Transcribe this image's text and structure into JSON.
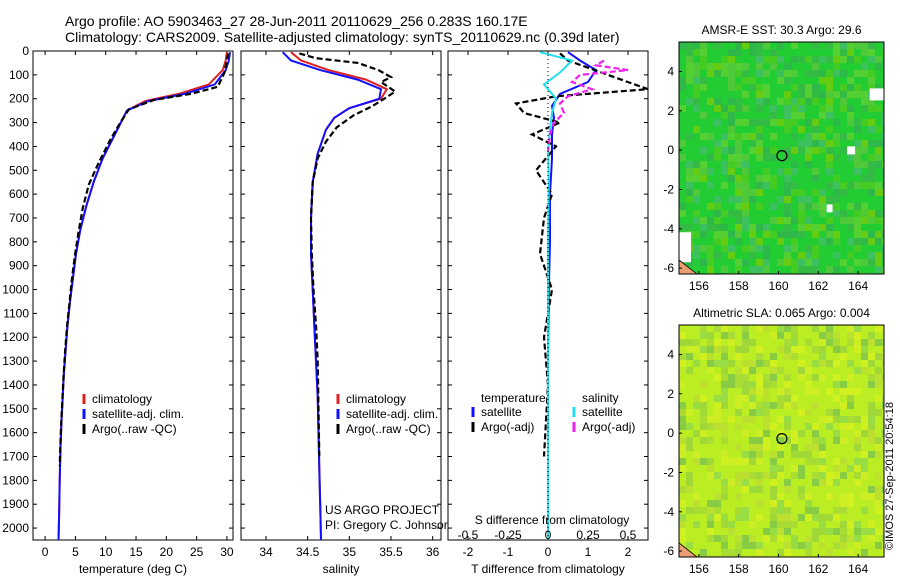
{
  "header": {
    "line1": "Argo profile: AO 5903463_27 28-Jun-2011 20110629_256 0.283S 160.17E",
    "line2": "Climatology: CARS2009. Satellite-adjusted climatology: synTS_20110629.nc (0.39d later)"
  },
  "colors": {
    "climatology": "#e02020",
    "satellite": "#1010ff",
    "argo": "#000000",
    "salinity_satellite": "#20e0f0",
    "salinity_argo": "#f020f0",
    "sst_map": "#22cc33",
    "sla_map": "#bbee22"
  },
  "chart_data": [
    {
      "type": "line",
      "panel": "temperature",
      "xlabel": "temperature (deg C)",
      "xlim": [
        -2,
        31
      ],
      "ylim": [
        0,
        2050
      ],
      "x_ticks": [
        0,
        5,
        10,
        15,
        20,
        25,
        30
      ],
      "y_ticks": [
        0,
        100,
        200,
        300,
        400,
        500,
        600,
        700,
        800,
        900,
        1000,
        1100,
        1200,
        1300,
        1400,
        1500,
        1600,
        1700,
        1800,
        1900,
        2000
      ],
      "legend": [
        "climatology",
        "satellite-adj. clim.",
        "Argo(..raw -QC)"
      ],
      "series": [
        {
          "name": "climatology",
          "color_key": "climatology",
          "x": [
            30,
            29.8,
            29.3,
            27,
            22,
            16.5,
            13.5,
            12.5,
            11.5,
            9.5,
            8.0,
            6.8,
            5.8,
            5.1,
            4.6,
            4.1,
            3.7,
            3.4,
            3.1,
            2.9,
            2.7,
            2.55,
            2.4,
            2.3,
            2.2
          ],
          "y": [
            5,
            40,
            80,
            140,
            180,
            210,
            250,
            300,
            350,
            450,
            550,
            650,
            750,
            850,
            950,
            1050,
            1150,
            1250,
            1350,
            1450,
            1550,
            1650,
            1800,
            1950,
            2050
          ]
        },
        {
          "name": "satellite-adj. clim.",
          "color_key": "satellite",
          "x": [
            30.5,
            30.3,
            29.8,
            28,
            23,
            17,
            13.5,
            12.5,
            11.5,
            9.5,
            8.0,
            6.8,
            5.8,
            5.1,
            4.6,
            4.1,
            3.7,
            3.4,
            3.1,
            2.9,
            2.7,
            2.55,
            2.4,
            2.3,
            2.2
          ],
          "y": [
            5,
            40,
            80,
            140,
            180,
            210,
            250,
            300,
            350,
            450,
            550,
            650,
            750,
            850,
            950,
            1050,
            1150,
            1250,
            1350,
            1450,
            1550,
            1650,
            1800,
            1950,
            2050
          ]
        },
        {
          "name": "Argo(..raw -QC)",
          "color_key": "argo",
          "dashed": true,
          "x": [
            30.2,
            30.0,
            29.6,
            28.5,
            24,
            18,
            13.8,
            12.4,
            10.8,
            8.8,
            7.2,
            6.2,
            5.5,
            4.9,
            4.4,
            4.0,
            3.6,
            3.3,
            3.05,
            2.85,
            2.65,
            2.5,
            2.4
          ],
          "y": [
            10,
            40,
            90,
            150,
            180,
            205,
            245,
            300,
            370,
            470,
            560,
            660,
            760,
            860,
            960,
            1060,
            1160,
            1260,
            1360,
            1460,
            1560,
            1660,
            1740
          ]
        }
      ]
    },
    {
      "type": "line",
      "panel": "salinity",
      "xlabel": "salinity",
      "xlim": [
        33.7,
        36.1
      ],
      "ylim": [
        0,
        2050
      ],
      "x_ticks": [
        34,
        34.5,
        35,
        35.5,
        36
      ],
      "x_tick_labels": [
        "34",
        "34.5",
        "35",
        "35.5",
        "36"
      ],
      "legend": [
        "climatology",
        "satellite-adj. clim.",
        "Argo(..raw -QC)"
      ],
      "annotation": [
        "US ARGO PROJECT",
        "PI: Gregory C. Johnson"
      ],
      "series": [
        {
          "name": "climatology",
          "color_key": "climatology",
          "x": [
            34.3,
            34.42,
            34.75,
            35.2,
            35.45,
            35.38,
            35.0,
            34.82,
            34.72,
            34.62,
            34.56,
            34.54,
            34.54,
            34.56,
            34.58,
            34.6,
            34.62,
            34.63,
            34.64,
            34.65,
            34.66
          ],
          "y": [
            5,
            40,
            80,
            120,
            160,
            200,
            240,
            280,
            330,
            430,
            550,
            700,
            850,
            1000,
            1150,
            1300,
            1450,
            1600,
            1750,
            1900,
            2050
          ]
        },
        {
          "name": "satellite-adj. clim.",
          "color_key": "satellite",
          "x": [
            34.2,
            34.3,
            34.65,
            35.1,
            35.38,
            35.36,
            35.0,
            34.82,
            34.72,
            34.62,
            34.56,
            34.54,
            34.54,
            34.56,
            34.58,
            34.6,
            34.62,
            34.63,
            34.64,
            34.65,
            34.66
          ],
          "y": [
            5,
            40,
            80,
            120,
            160,
            200,
            240,
            280,
            330,
            430,
            550,
            700,
            850,
            1000,
            1150,
            1300,
            1450,
            1600,
            1750,
            1900,
            2050
          ]
        },
        {
          "name": "Argo(..raw -QC)",
          "color_key": "argo",
          "dashed": true,
          "x": [
            34.4,
            34.6,
            35.1,
            35.35,
            35.5,
            35.38,
            35.55,
            35.42,
            35.28,
            35.05,
            34.85,
            34.72,
            34.62,
            34.56,
            34.54,
            34.55,
            34.57,
            34.6,
            34.62,
            34.63,
            34.64
          ],
          "y": [
            10,
            30,
            50,
            80,
            110,
            130,
            170,
            200,
            230,
            270,
            320,
            380,
            450,
            550,
            700,
            850,
            1000,
            1150,
            1300,
            1500,
            1700
          ]
        }
      ]
    },
    {
      "type": "line",
      "panel": "difference",
      "xlabel": "T difference from climatology",
      "top_label": "S difference from climatology",
      "xlim": [
        -2.5,
        2.5
      ],
      "ylim": [
        0,
        2050
      ],
      "x_ticks": [
        -2,
        -1,
        0,
        1,
        2
      ],
      "top_ticks": [
        -0.5,
        -0.25,
        0,
        0.25,
        0.5
      ],
      "legend_temperature": [
        "temperature",
        "satellite",
        "Argo(-adj)"
      ],
      "legend_salinity": [
        "salinity",
        "satellite",
        "Argo(-adj)"
      ],
      "series": [
        {
          "name": "satellite",
          "group": "temperature",
          "color_key": "satellite",
          "x": [
            0.5,
            0.8,
            1.2,
            1.0,
            0.3,
            0.1,
            0.15,
            0.1,
            0.1,
            0.05,
            0.05,
            0.02,
            0.0,
            0.0,
            0.0,
            0.0
          ],
          "y": [
            5,
            40,
            80,
            130,
            180,
            230,
            280,
            350,
            450,
            600,
            800,
            1000,
            1300,
            1600,
            1900,
            2050
          ]
        },
        {
          "name": "Argo(-adj)",
          "group": "temperature",
          "color_key": "argo",
          "dashed": true,
          "x": [
            0.3,
            0.5,
            1.5,
            2.8,
            0.2,
            -0.8,
            -0.6,
            0.3,
            -0.4,
            0.2,
            -0.3,
            0.1,
            -0.1,
            -0.2,
            0.1,
            -0.1,
            0.0,
            -0.1
          ],
          "y": [
            10,
            40,
            100,
            160,
            190,
            220,
            260,
            300,
            350,
            400,
            500,
            600,
            700,
            850,
            1000,
            1200,
            1400,
            1700
          ]
        },
        {
          "name": "satellite",
          "group": "salinity",
          "color_key": "salinity_satellite",
          "x": [
            -0.2,
            0.6,
            0.3,
            -0.1,
            0.2,
            0.1,
            0.05,
            0.0,
            0.02,
            0.0,
            0.0,
            0.0,
            0.0
          ],
          "y": [
            5,
            40,
            90,
            140,
            200,
            260,
            330,
            420,
            550,
            800,
            1100,
            1500,
            2050
          ]
        },
        {
          "name": "Argo(-adj)",
          "group": "salinity",
          "color_key": "salinity_argo",
          "dashed": true,
          "x": [
            1.4,
            1.2,
            2.0,
            0.8,
            0.6,
            1.1,
            0.5,
            0.3,
            0.4,
            0.15,
            0.05,
            0.0
          ],
          "y": [
            40,
            60,
            80,
            100,
            130,
            160,
            190,
            220,
            260,
            300,
            350,
            420
          ]
        }
      ]
    },
    {
      "type": "heatmap",
      "panel": "sst_map",
      "title": "AMSR-E SST: 30.3  Argo: 29.6",
      "xlim": [
        155,
        165.3
      ],
      "ylim": [
        -6.3,
        5.5
      ],
      "x_ticks": [
        156,
        158,
        160,
        162,
        164
      ],
      "y_ticks": [
        -6,
        -4,
        -2,
        0,
        2,
        4
      ],
      "marker": {
        "x": 160.17,
        "y": -0.28
      },
      "color_key": "sst_map"
    },
    {
      "type": "heatmap",
      "panel": "sla_map",
      "title": "Altimetric SLA: 0.065  Argo: 0.004",
      "xlim": [
        155,
        165.3
      ],
      "ylim": [
        -6.3,
        5.5
      ],
      "x_ticks": [
        156,
        158,
        160,
        162,
        164
      ],
      "y_ticks": [
        -6,
        -4,
        -2,
        0,
        2,
        4
      ],
      "marker": {
        "x": 160.17,
        "y": -0.28
      },
      "color_key": "sla_map"
    }
  ],
  "footer": {
    "credit": "©IMOS 27-Sep-2011 20:54:18"
  }
}
